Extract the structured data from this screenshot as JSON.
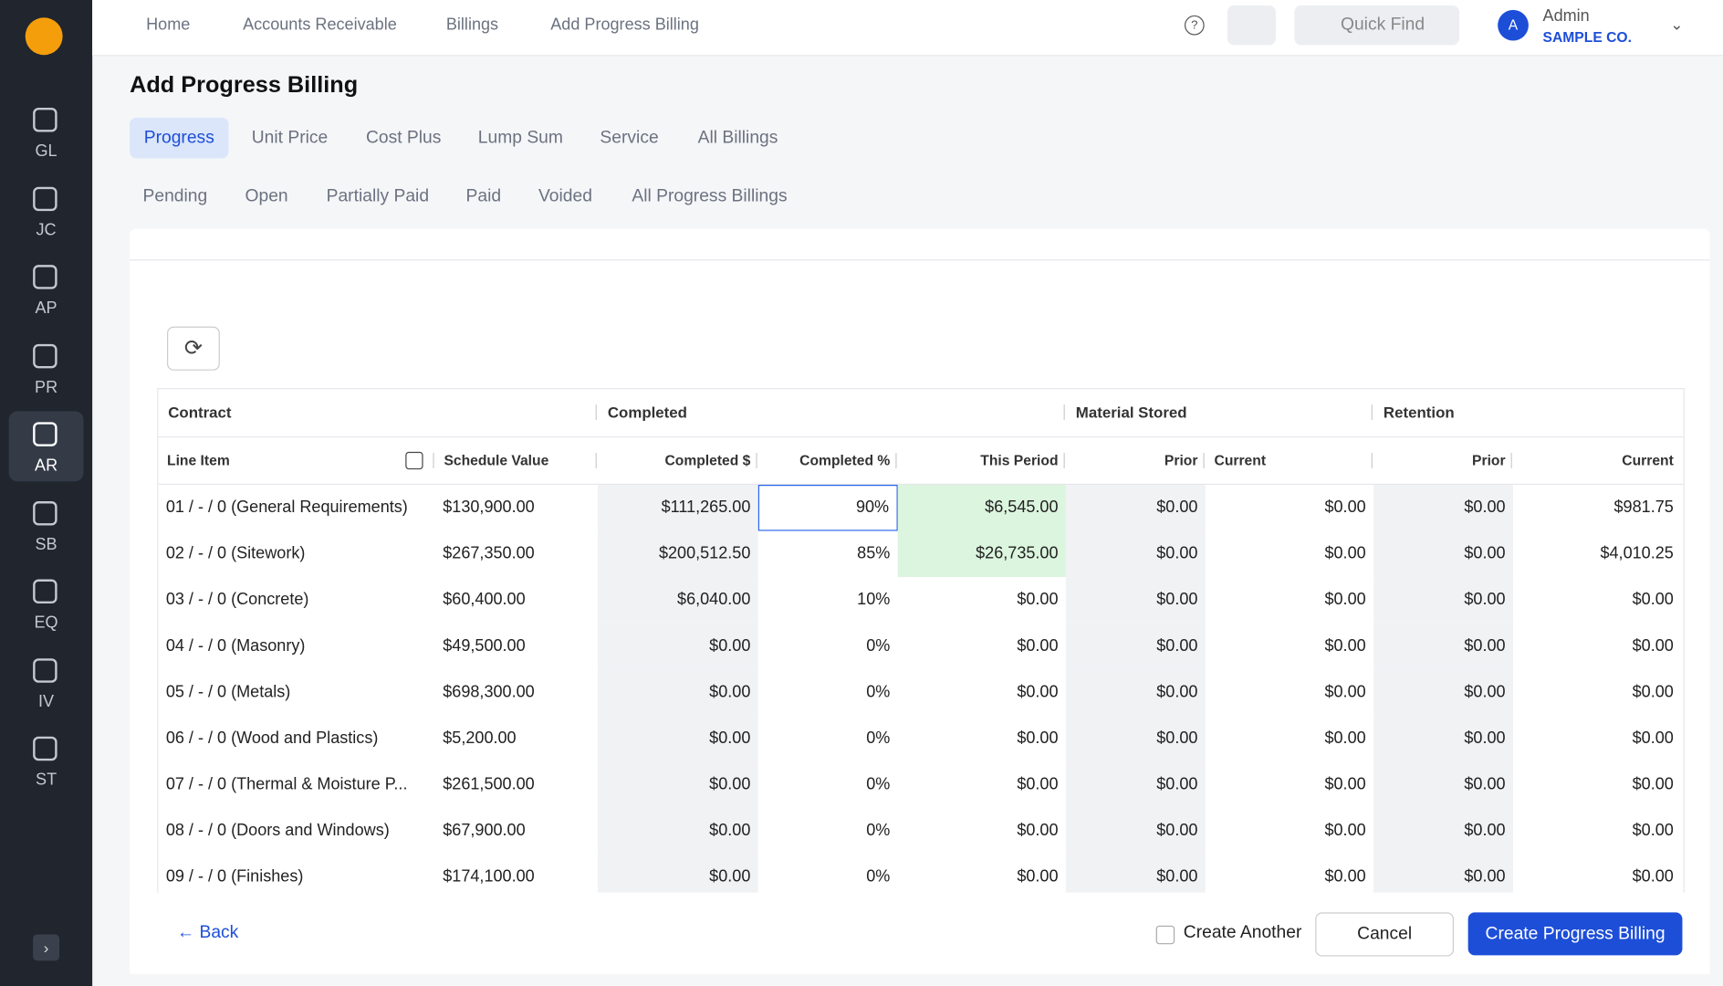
{
  "sidebar": [
    "GL",
    "JC",
    "AP",
    "PR",
    "AR",
    "SB",
    "EQ",
    "IV",
    "ST"
  ],
  "breadcrumb": [
    "Home",
    "Accounts Receivable",
    "Billings",
    "Add Progress Billing"
  ],
  "header": {
    "search": "Quick Find",
    "avatar": "A",
    "user": "Admin",
    "company": "SAMPLE CO."
  },
  "title": "Add Progress Billing",
  "tabs": [
    "Progress",
    "Unit Price",
    "Cost Plus",
    "Lump Sum",
    "Service",
    "All Billings"
  ],
  "subtabs": [
    "Pending",
    "Open",
    "Partially Paid",
    "Paid",
    "Voided",
    "All Progress Billings"
  ],
  "table": {
    "groups": [
      "Contract",
      "Completed",
      "Material Stored",
      "Retention"
    ],
    "columns": [
      "Line Item",
      "Schedule Value",
      "Completed $",
      "Completed %",
      "This Period",
      "Prior",
      "Current",
      "Prior",
      "Current"
    ],
    "rows": [
      [
        "01 / - / 0 (General Requirements)",
        "$130,900.00",
        "$111,265.00",
        "90%",
        "$6,545.00",
        "$0.00",
        "$0.00",
        "$0.00",
        "$981.75"
      ],
      [
        "02 / - / 0 (Sitework)",
        "$267,350.00",
        "$200,512.50",
        "85%",
        "$26,735.00",
        "$0.00",
        "$0.00",
        "$0.00",
        "$4,010.25"
      ],
      [
        "03 / - / 0 (Concrete)",
        "$60,400.00",
        "$6,040.00",
        "10%",
        "$0.00",
        "$0.00",
        "$0.00",
        "$0.00",
        "$0.00"
      ],
      [
        "04 / - / 0 (Masonry)",
        "$49,500.00",
        "$0.00",
        "0%",
        "$0.00",
        "$0.00",
        "$0.00",
        "$0.00",
        "$0.00"
      ],
      [
        "05 / - / 0 (Metals)",
        "$698,300.00",
        "$0.00",
        "0%",
        "$0.00",
        "$0.00",
        "$0.00",
        "$0.00",
        "$0.00"
      ],
      [
        "06 / - / 0 (Wood and Plastics)",
        "$5,200.00",
        "$0.00",
        "0%",
        "$0.00",
        "$0.00",
        "$0.00",
        "$0.00",
        "$0.00"
      ],
      [
        "07 / - / 0 (Thermal & Moisture P...",
        "$261,500.00",
        "$0.00",
        "0%",
        "$0.00",
        "$0.00",
        "$0.00",
        "$0.00",
        "$0.00"
      ],
      [
        "08 / - / 0 (Doors and Windows)",
        "$67,900.00",
        "$0.00",
        "0%",
        "$0.00",
        "$0.00",
        "$0.00",
        "$0.00",
        "$0.00"
      ],
      [
        "09 / - / 0 (Finishes)",
        "$174,100.00",
        "$0.00",
        "0%",
        "$0.00",
        "$0.00",
        "$0.00",
        "$0.00",
        "$0.00"
      ]
    ]
  },
  "footer": {
    "back": "← Back",
    "create_another": "Create Another",
    "cancel": "Cancel",
    "submit": "Create Progress Billing"
  }
}
